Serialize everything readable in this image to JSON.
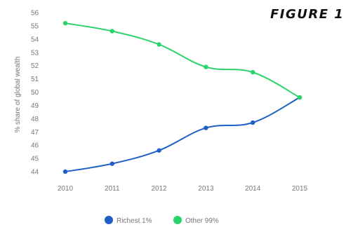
{
  "figure_label": "FIGURE 1",
  "chart_data": {
    "type": "line",
    "title": "",
    "xlabel": "",
    "ylabel": "% share of global wealth",
    "x": [
      "2010",
      "2011",
      "2012",
      "2013",
      "2014",
      "2015"
    ],
    "ylim": [
      44,
      56
    ],
    "yticks": [
      "56",
      "55",
      "54",
      "53",
      "52",
      "51",
      "50",
      "49",
      "48",
      "47",
      "46",
      "45",
      "44"
    ],
    "series": [
      {
        "name": "Richest 1%",
        "color": "#1f5fc6",
        "values": [
          44.0,
          44.6,
          45.6,
          47.3,
          47.7,
          49.6
        ]
      },
      {
        "name": "Other 99%",
        "color": "#2bd36b",
        "values": [
          55.2,
          54.6,
          53.6,
          51.9,
          51.5,
          49.6
        ]
      }
    ],
    "grid": false,
    "legend": "bottom-center"
  }
}
